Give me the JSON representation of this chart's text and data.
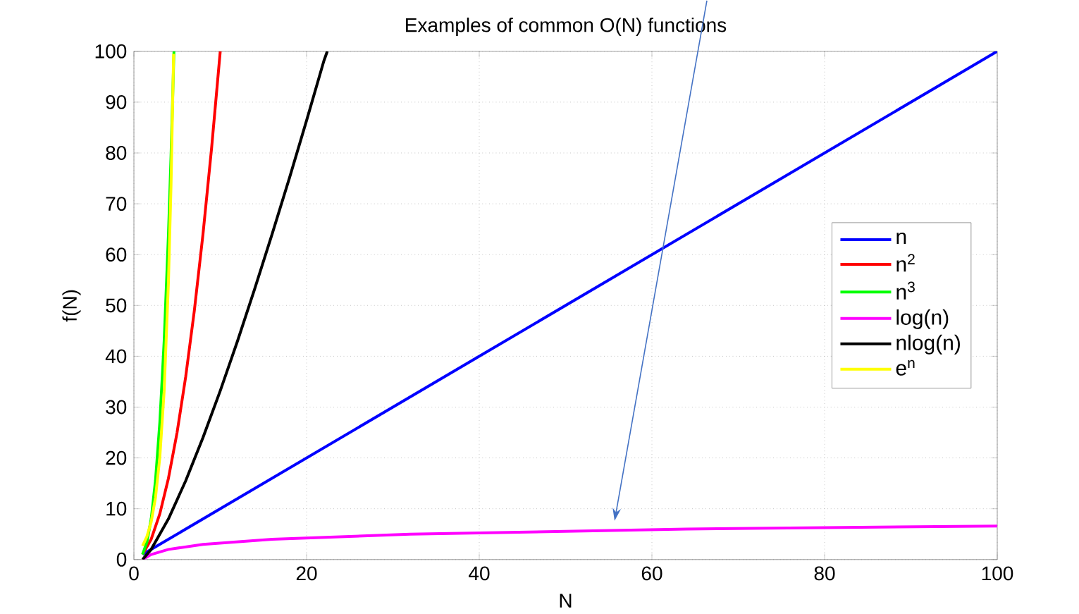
{
  "chart_data": {
    "type": "line",
    "title": "Examples of common O(N) functions",
    "xlabel": "N",
    "ylabel": "f(N)",
    "xlim": [
      0,
      100
    ],
    "ylim": [
      0,
      100
    ],
    "xticks": [
      0,
      20,
      40,
      60,
      80,
      100
    ],
    "yticks": [
      0,
      10,
      20,
      30,
      40,
      50,
      60,
      70,
      80,
      90,
      100
    ],
    "grid": true,
    "legend": "right",
    "line_style": "solid",
    "marker": "none",
    "series": [
      {
        "name": "n",
        "color": "#0000ff",
        "x": [
          1,
          100
        ],
        "values": [
          1,
          100
        ]
      },
      {
        "name": "n$^{2}$",
        "color": "#ff0000",
        "x": [
          1,
          2,
          3,
          4,
          5,
          6,
          7,
          8,
          9,
          10
        ],
        "values": [
          1,
          4,
          9,
          16,
          25,
          36,
          49,
          64,
          81,
          100
        ]
      },
      {
        "name": "n$^{3}$",
        "color": "#00ff00",
        "x": [
          1,
          1.5,
          2,
          2.5,
          3,
          3.5,
          4,
          4.3,
          4.64
        ],
        "values": [
          1,
          3.4,
          8,
          15.6,
          27,
          42.9,
          64,
          79.5,
          100
        ]
      },
      {
        "name": "log(n)",
        "color": "#ff00ff",
        "x": [
          1,
          2,
          4,
          8,
          16,
          32,
          64,
          100
        ],
        "values": [
          0,
          1,
          2,
          3,
          4,
          5,
          6,
          6.6
        ]
      },
      {
        "name": "nlog(n)",
        "color": "#000000",
        "x": [
          1,
          2,
          4,
          6,
          8,
          10,
          12,
          14,
          16,
          18,
          20,
          22,
          22.4
        ],
        "values": [
          0,
          2,
          8,
          15.5,
          24,
          33.2,
          43,
          53.3,
          64,
          75,
          86.4,
          98.1,
          100
        ]
      },
      {
        "name": "e$^{n}$",
        "color": "#ffff00",
        "x": [
          1,
          1.5,
          2,
          2.5,
          3,
          3.5,
          4,
          4.3,
          4.6
        ],
        "values": [
          2.7,
          4.5,
          7.4,
          12.2,
          20.1,
          33.1,
          54.6,
          73.7,
          99.5
        ]
      }
    ]
  }
}
